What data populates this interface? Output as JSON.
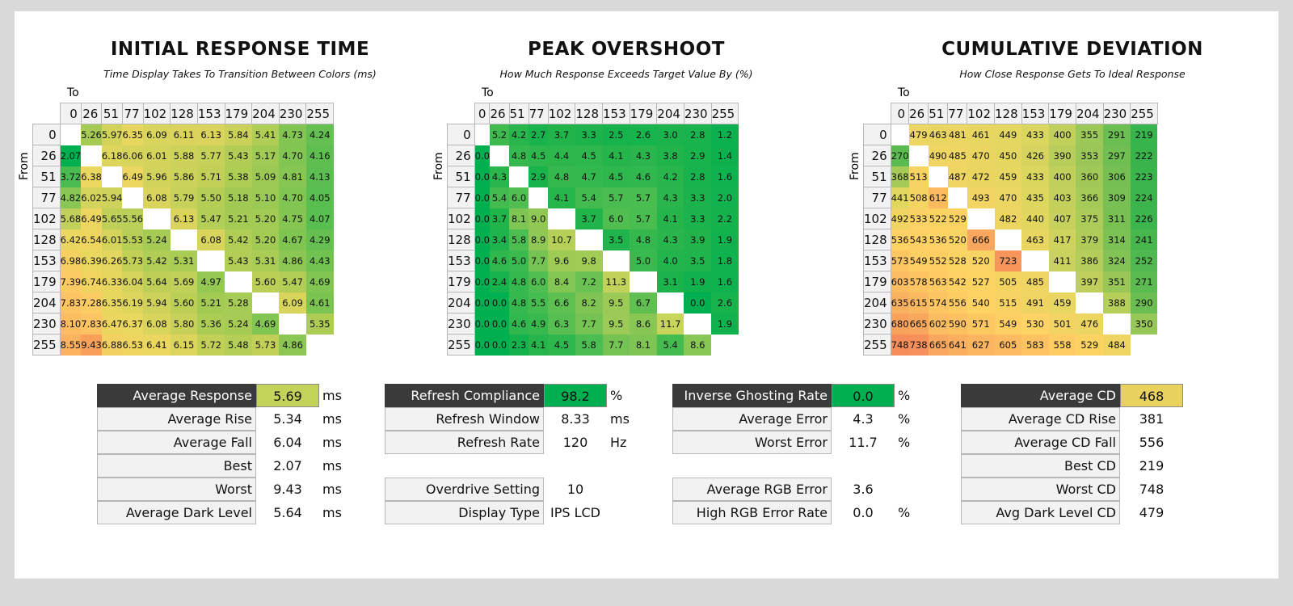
{
  "chart_data": [
    {
      "type": "heatmap",
      "title": "INITIAL RESPONSE TIME",
      "subtitle": "Time Display Takes To Transition Between Colors (ms)",
      "xlabel": "To",
      "ylabel": "From",
      "categories": [
        "0",
        "26",
        "51",
        "77",
        "102",
        "128",
        "153",
        "179",
        "204",
        "230",
        "255"
      ],
      "values": [
        [
          null,
          "5.26",
          "5.97",
          "6.35",
          "6.09",
          "6.11",
          "6.13",
          "5.84",
          "5.41",
          "4.73",
          "4.24"
        ],
        [
          "2.07",
          null,
          "6.18",
          "6.06",
          "6.01",
          "5.88",
          "5.77",
          "5.43",
          "5.17",
          "4.70",
          "4.16"
        ],
        [
          "3.72",
          "6.38",
          null,
          "6.49",
          "5.96",
          "5.86",
          "5.71",
          "5.38",
          "5.09",
          "4.81",
          "4.13"
        ],
        [
          "4.82",
          "6.02",
          "5.94",
          null,
          "6.08",
          "5.79",
          "5.50",
          "5.18",
          "5.10",
          "4.70",
          "4.05"
        ],
        [
          "5.68",
          "6.49",
          "5.65",
          "5.56",
          null,
          "6.13",
          "5.47",
          "5.21",
          "5.20",
          "4.75",
          "4.07"
        ],
        [
          "6.42",
          "6.54",
          "6.01",
          "5.53",
          "5.24",
          null,
          "6.08",
          "5.42",
          "5.20",
          "4.67",
          "4.29"
        ],
        [
          "6.98",
          "6.39",
          "6.26",
          "5.73",
          "5.42",
          "5.31",
          null,
          "5.43",
          "5.31",
          "4.86",
          "4.43"
        ],
        [
          "7.39",
          "6.74",
          "6.33",
          "6.04",
          "5.64",
          "5.69",
          "4.97",
          null,
          "5.60",
          "5.47",
          "4.69"
        ],
        [
          "7.83",
          "7.28",
          "6.35",
          "6.19",
          "5.94",
          "5.60",
          "5.21",
          "5.28",
          null,
          "6.09",
          "4.61"
        ],
        [
          "8.10",
          "7.83",
          "6.47",
          "6.37",
          "6.08",
          "5.80",
          "5.36",
          "5.24",
          "4.69",
          null,
          "5.35"
        ],
        [
          "8.55",
          "9.43",
          "6.88",
          "6.53",
          "6.41",
          "6.15",
          "5.72",
          "5.48",
          "5.73",
          "4.86",
          null
        ]
      ]
    },
    {
      "type": "heatmap",
      "title": "PEAK OVERSHOOT",
      "subtitle": "How Much Response Exceeds Target Value By (%)",
      "xlabel": "To",
      "ylabel": "From",
      "categories": [
        "0",
        "26",
        "51",
        "77",
        "102",
        "128",
        "153",
        "179",
        "204",
        "230",
        "255"
      ],
      "values": [
        [
          null,
          "5.2",
          "4.2",
          "2.7",
          "3.7",
          "3.3",
          "2.5",
          "2.6",
          "3.0",
          "2.8",
          "1.2"
        ],
        [
          "0.0",
          null,
          "4.8",
          "4.5",
          "4.4",
          "4.5",
          "4.1",
          "4.3",
          "3.8",
          "2.9",
          "1.4"
        ],
        [
          "0.0",
          "4.3",
          null,
          "2.9",
          "4.8",
          "4.7",
          "4.5",
          "4.6",
          "4.2",
          "2.8",
          "1.6"
        ],
        [
          "0.0",
          "5.4",
          "6.0",
          null,
          "4.1",
          "5.4",
          "5.7",
          "5.7",
          "4.3",
          "3.3",
          "2.0"
        ],
        [
          "0.0",
          "3.7",
          "8.1",
          "9.0",
          null,
          "3.7",
          "6.0",
          "5.7",
          "4.1",
          "3.3",
          "2.2"
        ],
        [
          "0.0",
          "3.4",
          "5.8",
          "8.9",
          "10.7",
          null,
          "3.5",
          "4.8",
          "4.3",
          "3.9",
          "1.9"
        ],
        [
          "0.0",
          "4.6",
          "5.0",
          "7.7",
          "9.6",
          "9.8",
          null,
          "5.0",
          "4.0",
          "3.5",
          "1.8"
        ],
        [
          "0.0",
          "2.4",
          "4.8",
          "6.0",
          "8.4",
          "7.2",
          "11.3",
          null,
          "3.1",
          "1.9",
          "1.6"
        ],
        [
          "0.0",
          "0.0",
          "4.8",
          "5.5",
          "6.6",
          "8.2",
          "9.5",
          "6.7",
          null,
          "0.0",
          "2.6"
        ],
        [
          "0.0",
          "0.0",
          "4.6",
          "4.9",
          "6.3",
          "7.7",
          "9.5",
          "8.6",
          "11.7",
          null,
          "1.9"
        ],
        [
          "0.0",
          "0.0",
          "2.3",
          "4.1",
          "4.5",
          "5.8",
          "7.7",
          "8.1",
          "5.4",
          "8.6",
          null
        ]
      ]
    },
    {
      "type": "heatmap",
      "title": "CUMULATIVE DEVIATION",
      "subtitle": "How Close Response Gets To Ideal Response",
      "xlabel": "To",
      "ylabel": "From",
      "categories": [
        "0",
        "26",
        "51",
        "77",
        "102",
        "128",
        "153",
        "179",
        "204",
        "230",
        "255"
      ],
      "values": [
        [
          null,
          "479",
          "463",
          "481",
          "461",
          "449",
          "433",
          "400",
          "355",
          "291",
          "219"
        ],
        [
          "270",
          null,
          "490",
          "485",
          "470",
          "450",
          "426",
          "390",
          "353",
          "297",
          "222"
        ],
        [
          "368",
          "513",
          null,
          "487",
          "472",
          "459",
          "433",
          "400",
          "360",
          "306",
          "223"
        ],
        [
          "441",
          "508",
          "612",
          null,
          "493",
          "470",
          "435",
          "403",
          "366",
          "309",
          "224"
        ],
        [
          "492",
          "533",
          "522",
          "529",
          null,
          "482",
          "440",
          "407",
          "375",
          "311",
          "226"
        ],
        [
          "536",
          "543",
          "536",
          "520",
          "666",
          null,
          "463",
          "417",
          "379",
          "314",
          "241"
        ],
        [
          "573",
          "549",
          "552",
          "528",
          "520",
          "723",
          null,
          "411",
          "386",
          "324",
          "252"
        ],
        [
          "603",
          "578",
          "563",
          "542",
          "527",
          "505",
          "485",
          null,
          "397",
          "351",
          "271"
        ],
        [
          "635",
          "615",
          "574",
          "556",
          "540",
          "515",
          "491",
          "459",
          null,
          "388",
          "290"
        ],
        [
          "680",
          "665",
          "602",
          "590",
          "571",
          "549",
          "530",
          "501",
          "476",
          null,
          "350"
        ],
        [
          "748",
          "738",
          "665",
          "641",
          "627",
          "605",
          "583",
          "558",
          "529",
          "484",
          null
        ]
      ]
    }
  ],
  "stats": [
    [
      {
        "label": "Average Response",
        "value": "5.69",
        "unit": "ms",
        "highlight": "#c3d35a"
      },
      {
        "label": "Average Rise",
        "value": "5.34",
        "unit": "ms"
      },
      {
        "label": "Average Fall",
        "value": "6.04",
        "unit": "ms"
      },
      {
        "label": "Best",
        "value": "2.07",
        "unit": "ms"
      },
      {
        "label": "Worst",
        "value": "9.43",
        "unit": "ms"
      },
      {
        "label": "Average Dark Level",
        "value": "5.64",
        "unit": "ms"
      }
    ],
    [
      {
        "label": "Refresh Compliance",
        "value": "98.2",
        "unit": "%",
        "highlight": "#00b050"
      },
      {
        "label": "Refresh Window",
        "value": "8.33",
        "unit": "ms"
      },
      {
        "label": "Refresh Rate",
        "value": "120",
        "unit": "Hz"
      },
      null,
      {
        "label": "Overdrive Setting",
        "value": "10",
        "unit": ""
      },
      {
        "label": "Display Type",
        "value": "IPS LCD",
        "unit": ""
      }
    ],
    [
      {
        "label": "Inverse Ghosting Rate",
        "value": "0.0",
        "unit": "%",
        "highlight": "#00b050"
      },
      {
        "label": "Average Error",
        "value": "4.3",
        "unit": "%"
      },
      {
        "label": "Worst Error",
        "value": "11.7",
        "unit": "%"
      },
      null,
      {
        "label": "Average RGB Error",
        "value": "3.6",
        "unit": ""
      },
      {
        "label": "High RGB Error Rate",
        "value": "0.0",
        "unit": "%"
      }
    ],
    [
      {
        "label": "Average CD",
        "value": "468",
        "unit": "",
        "highlight": "#e8d15c"
      },
      {
        "label": "Average CD Rise",
        "value": "381",
        "unit": ""
      },
      {
        "label": "Average CD Fall",
        "value": "556",
        "unit": ""
      },
      {
        "label": "Best CD",
        "value": "219",
        "unit": ""
      },
      {
        "label": "Worst CD",
        "value": "748",
        "unit": ""
      },
      {
        "label": "Avg Dark Level CD",
        "value": "479",
        "unit": ""
      }
    ]
  ]
}
